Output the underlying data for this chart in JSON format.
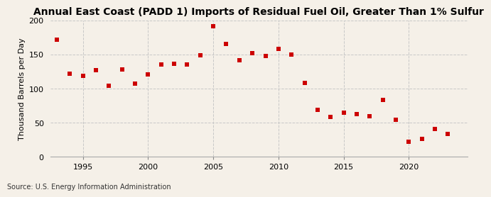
{
  "title": "Annual East Coast (PADD 1) Imports of Residual Fuel Oil, Greater Than 1% Sulfur",
  "ylabel": "Thousand Barrels per Day",
  "source": "Source: U.S. Energy Information Administration",
  "background_color": "#f5f0e8",
  "plot_bg_color": "#f5f0e8",
  "marker_color": "#cc0000",
  "years": [
    1993,
    1994,
    1995,
    1996,
    1997,
    1998,
    1999,
    2000,
    2001,
    2002,
    2003,
    2004,
    2005,
    2006,
    2007,
    2008,
    2009,
    2010,
    2011,
    2012,
    2013,
    2014,
    2015,
    2016,
    2017,
    2018,
    2019,
    2020,
    2021,
    2022,
    2023
  ],
  "values": [
    172,
    122,
    119,
    127,
    104,
    128,
    107,
    121,
    135,
    136,
    135,
    149,
    191,
    165,
    142,
    152,
    148,
    158,
    150,
    108,
    69,
    58,
    65,
    63,
    60,
    83,
    54,
    22,
    26,
    41,
    34
  ],
  "ylim": [
    0,
    200
  ],
  "yticks": [
    0,
    50,
    100,
    150,
    200
  ],
  "xtick_years": [
    1995,
    2000,
    2005,
    2010,
    2015,
    2020
  ],
  "grid_color": "#c8c8c8",
  "title_fontsize": 10,
  "label_fontsize": 8,
  "source_fontsize": 7,
  "xlim_left": 1992.5,
  "xlim_right": 2024.5
}
